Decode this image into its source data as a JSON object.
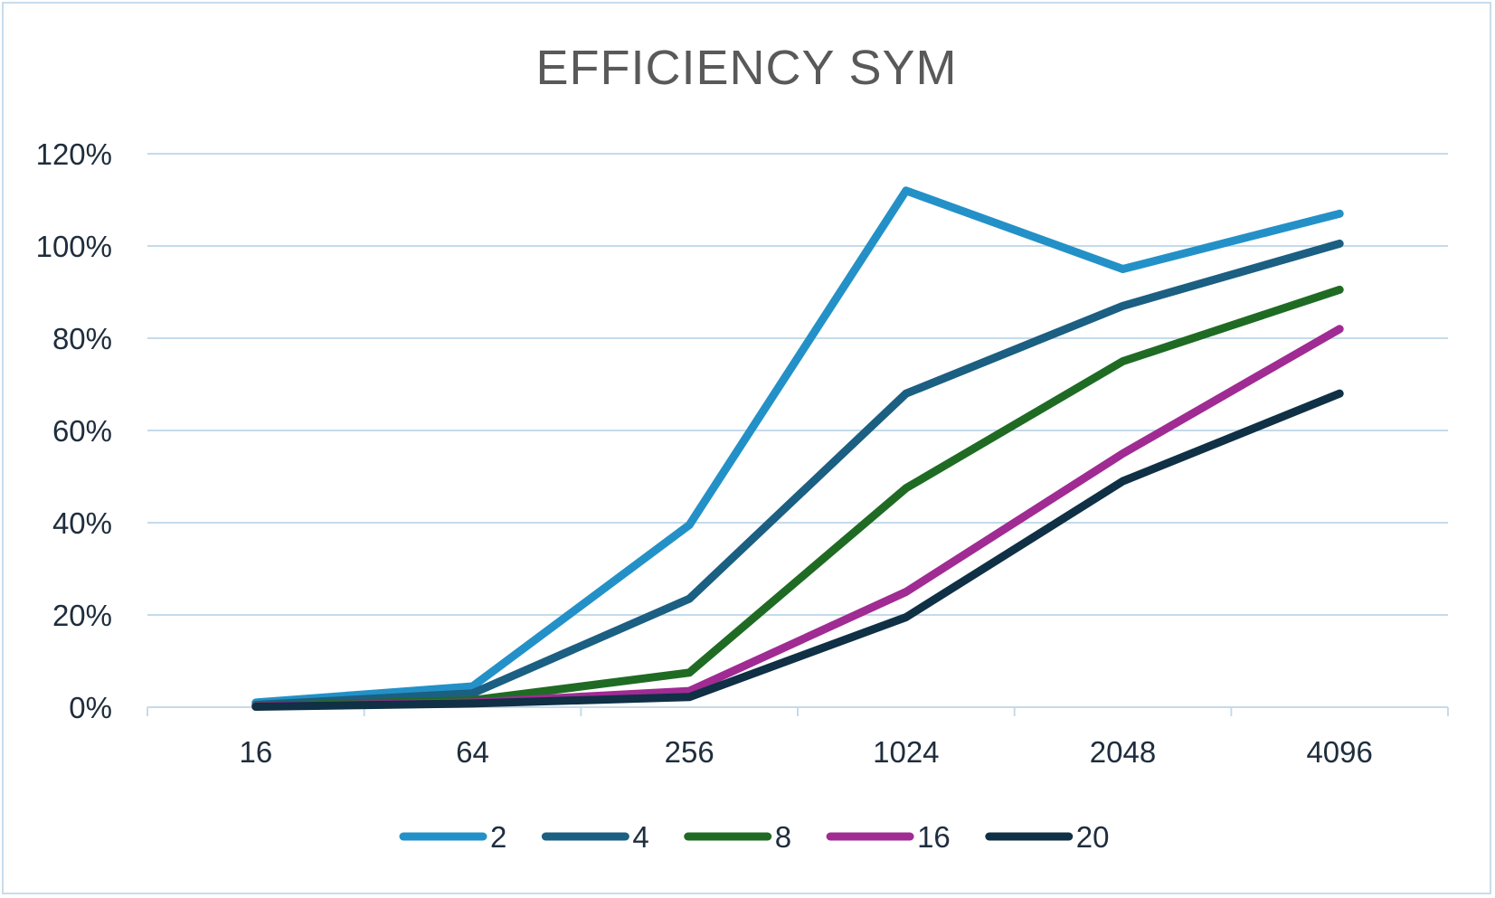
{
  "chart_data": {
    "type": "line",
    "title": "EFFICIENCY SYM",
    "xlabel": "",
    "ylabel": "",
    "categories": [
      "16",
      "64",
      "256",
      "1024",
      "2048",
      "4096"
    ],
    "ylim": [
      0,
      120
    ],
    "y_ticks": [
      0,
      20,
      40,
      60,
      80,
      100,
      120
    ],
    "y_tick_suffix": "%",
    "grid": true,
    "legend_position": "bottom",
    "series": [
      {
        "name": "2",
        "color": "#2391c7",
        "values": [
          1,
          4.5,
          39.5,
          112,
          95,
          107
        ]
      },
      {
        "name": "4",
        "color": "#1b5f82",
        "values": [
          0.5,
          3,
          23.5,
          68,
          87,
          100.5
        ]
      },
      {
        "name": "8",
        "color": "#1f6b24",
        "values": [
          0.3,
          1.5,
          7.5,
          47.5,
          75,
          90.5
        ]
      },
      {
        "name": "16",
        "color": "#a02b93",
        "values": [
          0.2,
          1,
          3.5,
          25,
          55,
          82
        ]
      },
      {
        "name": "20",
        "color": "#0f3045",
        "values": [
          0.1,
          0.8,
          2.2,
          19.5,
          49,
          68
        ]
      }
    ]
  }
}
